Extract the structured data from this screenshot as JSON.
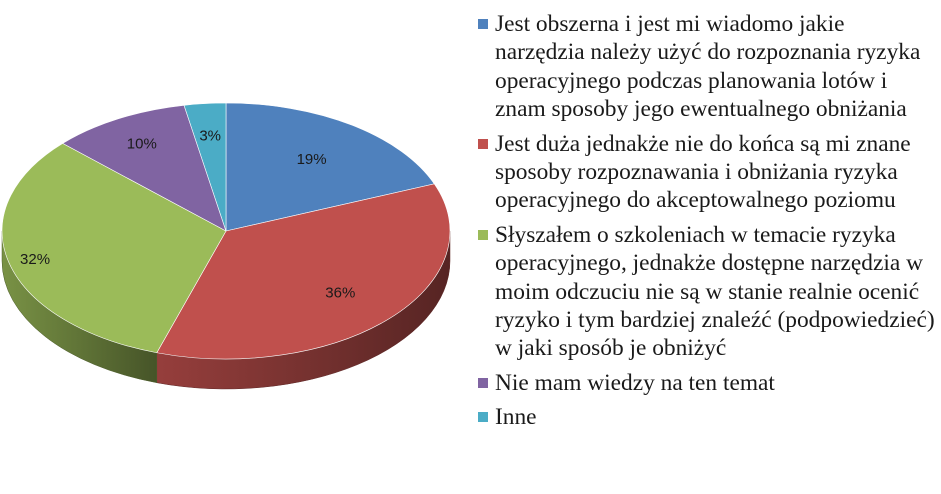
{
  "chart_data": {
    "type": "pie",
    "style": "3d",
    "categories": [
      "Jest obszerna i jest mi wiadomo jakie narzędzia należy użyć do rozpoznania ryzyka operacyjnego podczas planowania lotów i znam sposoby jego ewentualnego obniżania",
      "Jest duża jednakże nie do końca są mi znane sposoby rozpoznawania i obniżania ryzyka operacyjnego do akceptowalnego poziomu",
      "Słyszałem o szkoleniach w temacie ryzyka operacyjnego, jednakże dostępne narzędzia w moim odczuciu nie są w stanie realnie ocenić ryzyko i tym bardziej znaleźć (podpowiedzieć) w jaki sposób je obniżyć",
      "Nie mam wiedzy na ten temat",
      "Inne"
    ],
    "values": [
      19,
      36,
      32,
      10,
      3
    ],
    "data_labels": [
      "19%",
      "36%",
      "32%",
      "10%",
      "3%"
    ],
    "colors": [
      "#4f81bd",
      "#c0504d",
      "#9bbb59",
      "#8064a2",
      "#4bacc6"
    ],
    "legend_position": "right",
    "title": ""
  }
}
